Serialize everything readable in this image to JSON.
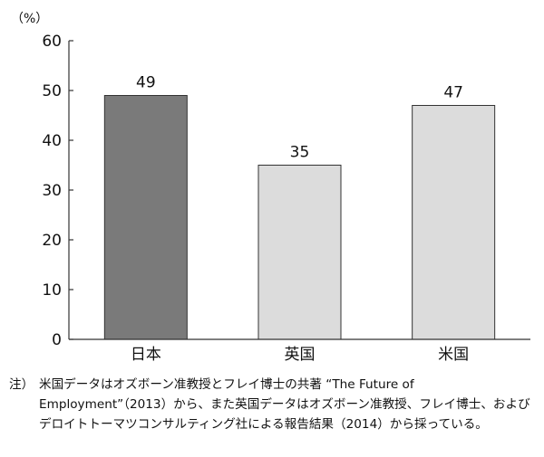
{
  "chart_data": {
    "type": "bar",
    "categories": [
      "日本",
      "英国",
      "米国"
    ],
    "values": [
      49,
      35,
      47
    ],
    "data_labels": [
      "49",
      "35",
      "47"
    ],
    "unit_label": "（%）",
    "ylim": [
      0,
      60
    ],
    "yticks": [
      0,
      10,
      20,
      30,
      40,
      50,
      60
    ],
    "grid": false,
    "legend": "none",
    "bar_colors": [
      "#7a7a7a",
      "#dcdcdc",
      "#dcdcdc"
    ],
    "bar_stroke": "#333333"
  },
  "note": {
    "prefix": "注）",
    "text": "米国データはオズボーン准教授とフレイ博士の共著 “The Future of Employment”（2013）から、また英国データはオズボーン准教授、フレイ博士、およびデロイトトーマツコンサルティング社による報告結果（2014）から採っている。"
  }
}
